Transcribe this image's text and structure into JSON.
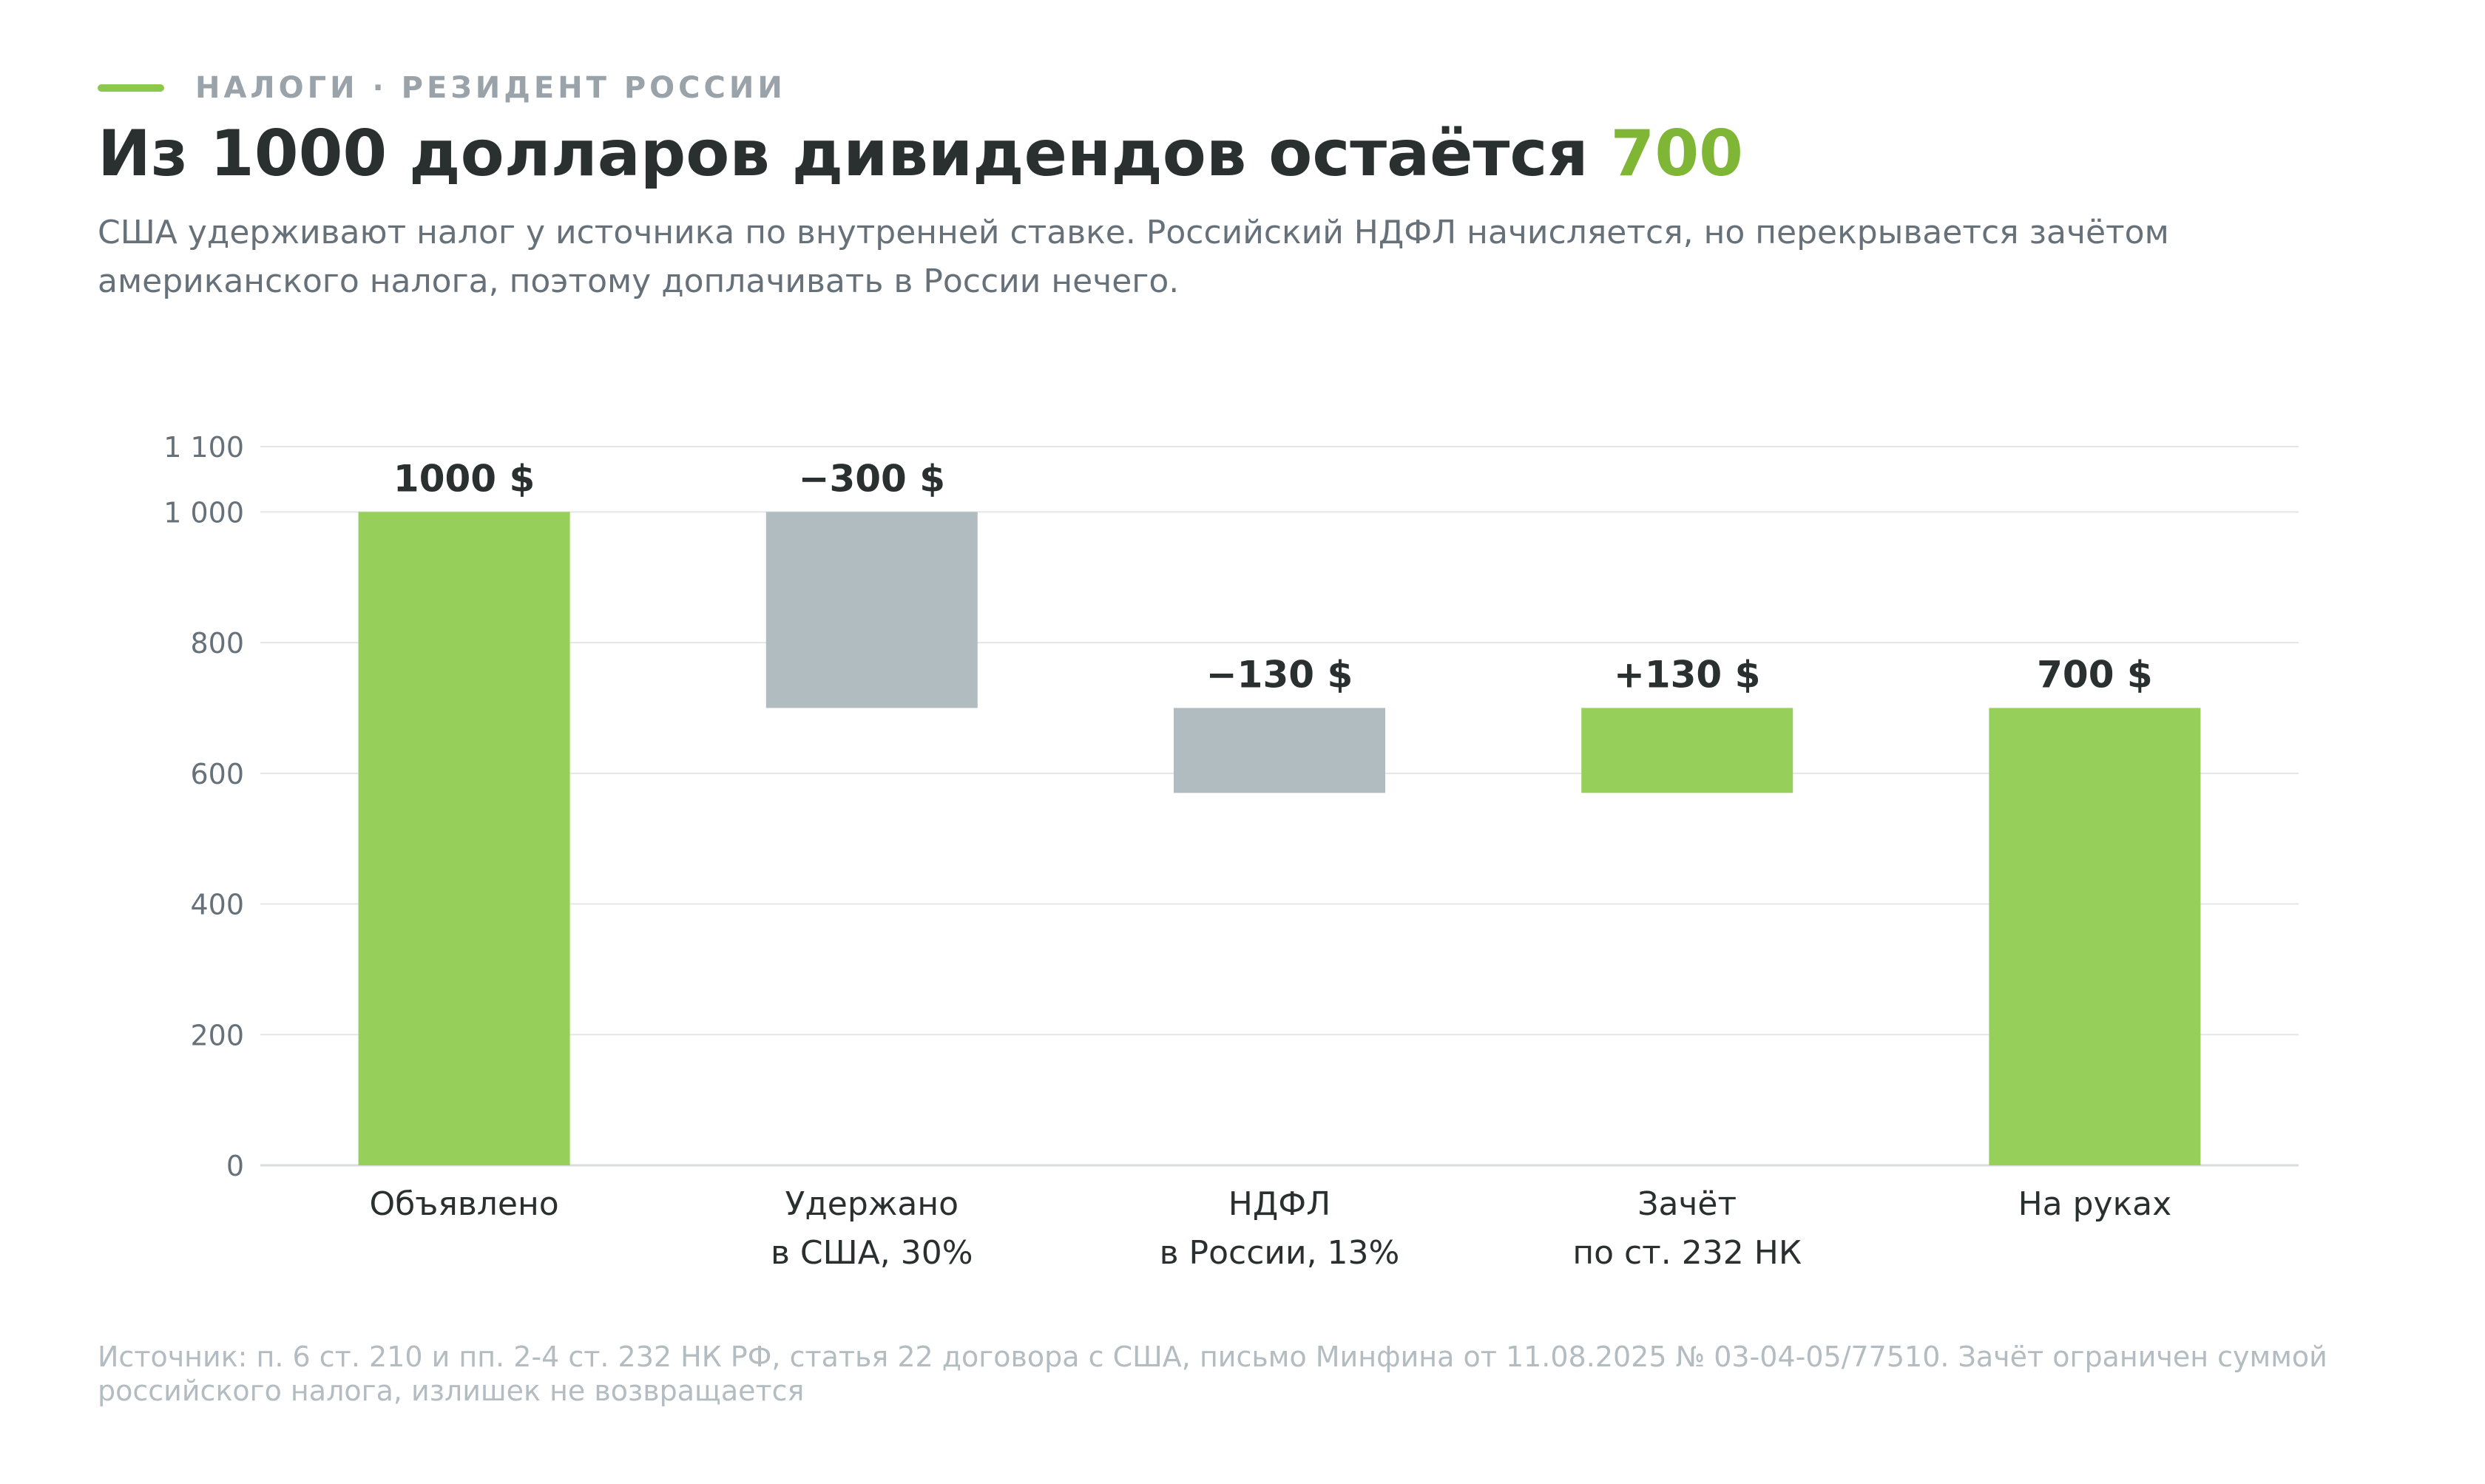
{
  "header": {
    "eyebrow": "НАЛОГИ · РЕЗИДЕНТ РОССИИ",
    "title_main": "Из 1000 долларов дивидендов остаётся ",
    "title_accent": "700",
    "subtitle": "США удерживают налог у источника по внутренней ставке. Российский НДФЛ начисляется, но перекрывается зачётом американского налога, поэтому доплачивать в России нечего."
  },
  "colors": {
    "accent": "#8cc84b",
    "bar_green": "#96cf5a",
    "bar_gray": "#b1bcc1",
    "text_dark": "#29302f",
    "grid": "#e3e6e7"
  },
  "chart_data": {
    "type": "bar",
    "subtype": "waterfall",
    "ylim": [
      0,
      1100
    ],
    "yticks": [
      0,
      200,
      400,
      600,
      800,
      1000,
      1100
    ],
    "ytick_labels": [
      "0",
      "200",
      "400",
      "600",
      "800",
      "1 000",
      "1 100"
    ],
    "grid": true,
    "categories": [
      [
        "Объявлено"
      ],
      [
        "Удержано",
        "в США, 30%"
      ],
      [
        "НДФЛ",
        "в России, 13%"
      ],
      [
        "Зачёт",
        "по ст. 232 НК"
      ],
      [
        "На руках"
      ]
    ],
    "bars": [
      {
        "start": 0,
        "end": 1000,
        "color": "green",
        "label": "1000 $"
      },
      {
        "start": 700,
        "end": 1000,
        "color": "gray",
        "label": "−300 $"
      },
      {
        "start": 570,
        "end": 700,
        "color": "gray",
        "label": "−130 $"
      },
      {
        "start": 570,
        "end": 700,
        "color": "green",
        "label": "+130 $"
      },
      {
        "start": 0,
        "end": 700,
        "color": "green",
        "label": "700 $"
      }
    ]
  },
  "footer": {
    "source": "Источник: п. 6 ст. 210 и пп. 2-4 ст. 232 НК РФ, статья 22 договора с США, письмо Минфина от 11.08.2025 № 03-04-05/77510. Зачёт ограничен суммой российского налога, излишек не возвращается"
  }
}
